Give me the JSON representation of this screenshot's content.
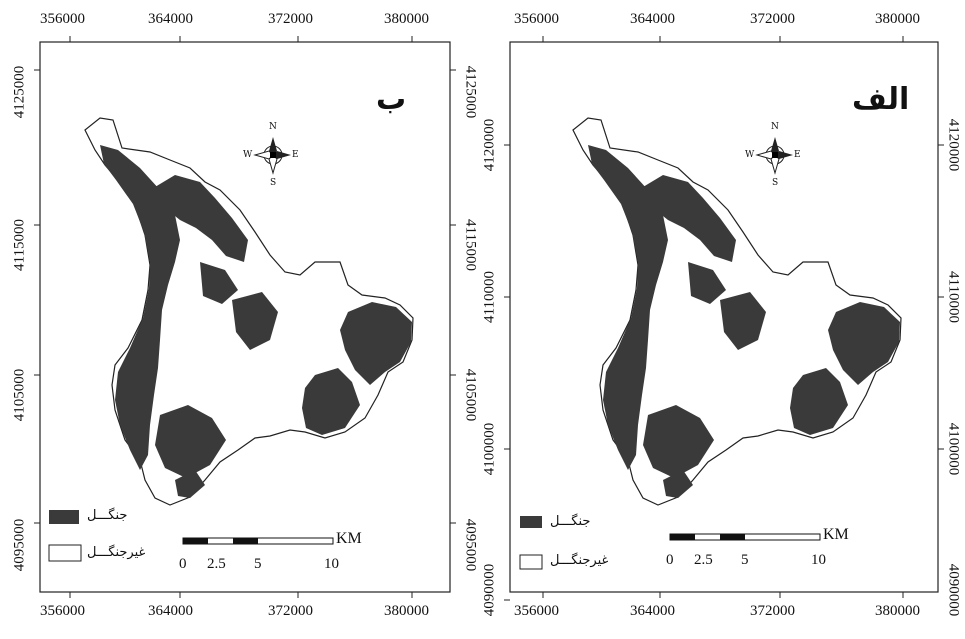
{
  "panels": [
    {
      "id": "left",
      "letter": "ب",
      "top_ticks": [
        "356000",
        "364000",
        "372000",
        "380000"
      ],
      "bottom_ticks": [
        "356000",
        "364000",
        "372000",
        "380000"
      ],
      "left_ticks": [
        "4125000",
        "4115000",
        "4105000",
        "4095000"
      ],
      "right_ticks": [
        "4125000",
        "4115000",
        "4105000",
        "4095000"
      ]
    },
    {
      "id": "right",
      "letter": "الف",
      "top_ticks": [
        "356000",
        "364000",
        "372000",
        "380000"
      ],
      "bottom_ticks": [
        "356000",
        "364000",
        "372000",
        "380000"
      ],
      "left_ticks": [
        "4120000",
        "4110000",
        "4100000",
        "4090000"
      ],
      "right_ticks": [
        "4120000",
        "4110000",
        "4100000",
        "4090000"
      ]
    }
  ],
  "legend": {
    "forest": "جنگـــل",
    "nonforest": "غیرجنگـــل"
  },
  "scalebar": {
    "unit": "KM",
    "labels": [
      "0",
      "2.5",
      "5",
      "10"
    ]
  },
  "north_arrow": {
    "N": "N",
    "S": "S",
    "E": "E",
    "W": "W"
  },
  "colors": {
    "forest": "#3a3a3a",
    "nonforest": "#ffffff",
    "frame": "#222222"
  }
}
